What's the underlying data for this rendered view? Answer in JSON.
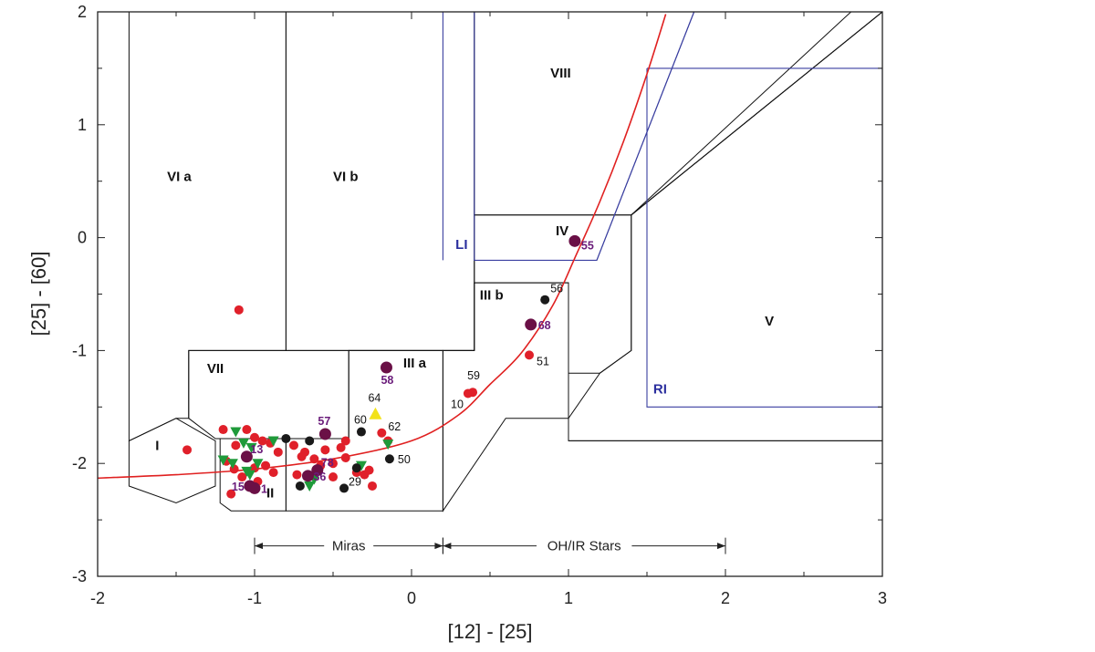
{
  "chart_data": {
    "type": "scatter",
    "title": "",
    "xlabel": "[12] - [25]",
    "ylabel": "[25] - [60]",
    "xlim": [
      -2,
      3
    ],
    "ylim": [
      -3,
      2
    ],
    "x_ticks": [
      "-2",
      "-1",
      "0",
      "1",
      "2",
      "3"
    ],
    "y_ticks": [
      "-3",
      "-2",
      "-1",
      "0",
      "1",
      "2"
    ],
    "grid": false,
    "colors": {
      "region_line": "#111111",
      "blue_line": "#3a3fa0",
      "curve": "#e02020",
      "red_point": "#e0202a",
      "black_point": "#1a1a1a",
      "purple_point": "#6a1046",
      "green_triangle": "#1f9a3a",
      "yellow_triangle": "#f2e21a"
    },
    "regions": [
      {
        "label": "I",
        "x": -1.62,
        "y": -1.88,
        "polygon": [
          [
            -1.8,
            -2.2
          ],
          [
            -1.5,
            -2.35
          ],
          [
            -1.25,
            -2.2
          ],
          [
            -1.25,
            -1.8
          ],
          [
            -1.5,
            -1.6
          ],
          [
            -1.8,
            -1.8
          ]
        ]
      },
      {
        "label": "II",
        "x": -0.9,
        "y": -2.3,
        "polygon": [
          [
            -1.22,
            -2.35
          ],
          [
            -1.15,
            -2.42
          ],
          [
            -0.8,
            -2.42
          ],
          [
            -0.8,
            -1.78
          ],
          [
            -1.22,
            -1.78
          ]
        ]
      },
      {
        "label": "VII",
        "x": -1.25,
        "y": -1.2,
        "polygon": [
          [
            -1.25,
            -1.78
          ],
          [
            -1.42,
            -1.6
          ],
          [
            -1.42,
            -1.0
          ],
          [
            -0.4,
            -1.0
          ],
          [
            -0.4,
            -1.78
          ]
        ]
      },
      {
        "label": "VI a",
        "x": -1.48,
        "y": 0.5,
        "polygon": [
          [
            -1.8,
            2.0
          ],
          [
            -1.8,
            -1.8
          ],
          [
            -1.5,
            -1.6
          ],
          [
            -1.42,
            -1.6
          ],
          [
            -1.42,
            -1.0
          ],
          [
            -0.8,
            -1.0
          ],
          [
            -0.8,
            2.0
          ]
        ]
      },
      {
        "label": "VI b",
        "x": -0.42,
        "y": 0.5,
        "polygon": [
          [
            -0.8,
            -1.0
          ],
          [
            -0.8,
            2.0
          ],
          [
            0.4,
            2.0
          ],
          [
            0.4,
            -1.0
          ]
        ]
      },
      {
        "label": "III a",
        "x": 0.02,
        "y": -1.15,
        "polygon": [
          [
            -0.4,
            -1.0
          ],
          [
            -0.4,
            -1.78
          ],
          [
            -0.8,
            -1.78
          ],
          [
            -0.8,
            -2.42
          ],
          [
            0.2,
            -2.42
          ],
          [
            0.2,
            -1.0
          ]
        ]
      },
      {
        "label": "III b",
        "x": 0.51,
        "y": -0.55,
        "polygon": [
          [
            0.2,
            -2.42
          ],
          [
            0.2,
            -1.0
          ],
          [
            0.4,
            -1.0
          ],
          [
            0.4,
            -0.4
          ],
          [
            1.0,
            -0.4
          ],
          [
            1.0,
            -1.6
          ],
          [
            0.6,
            -1.6
          ]
        ]
      },
      {
        "label": "IV",
        "x": 0.96,
        "y": 0.02,
        "polygon": [
          [
            0.4,
            -0.4
          ],
          [
            0.4,
            0.2
          ],
          [
            1.4,
            0.2
          ],
          [
            1.4,
            -1.0
          ],
          [
            1.2,
            -1.2
          ],
          [
            1.0,
            -1.2
          ],
          [
            1.0,
            -0.4
          ]
        ]
      },
      {
        "label": "VIII",
        "x": 0.95,
        "y": 1.42,
        "polygon": [
          [
            0.4,
            0.2
          ],
          [
            0.4,
            2.0
          ],
          [
            3.0,
            2.0
          ],
          [
            1.4,
            0.2
          ]
        ]
      },
      {
        "label": "V",
        "x": 2.28,
        "y": -0.78,
        "polygon": [
          [
            1.4,
            0.2
          ],
          [
            1.4,
            -1.0
          ],
          [
            1.2,
            -1.2
          ],
          [
            1.0,
            -1.6
          ],
          [
            1.0,
            -1.8
          ],
          [
            3.0,
            -1.8
          ],
          [
            3.0,
            2.0
          ]
        ]
      }
    ],
    "blue_regions": [
      {
        "label": "LI",
        "x": 0.28,
        "y": -0.1,
        "polygon": [
          [
            0.2,
            -0.2
          ],
          [
            0.2,
            2.0
          ],
          [
            0.4,
            2.0
          ],
          [
            0.4,
            -0.2
          ],
          [
            1.18,
            -0.2
          ],
          [
            1.8,
            2.0
          ]
        ]
      },
      {
        "label": "RI",
        "x": 1.54,
        "y": -1.38,
        "polygon": [
          [
            1.5,
            1.5
          ],
          [
            3.0,
            1.5
          ],
          [
            3.0,
            -1.5
          ],
          [
            1.5,
            -1.5
          ]
        ]
      }
    ],
    "extra_lines": [
      [
        [
          -0.4,
          -1.0
        ],
        [
          0.4,
          -1.0
        ]
      ],
      [
        [
          0.4,
          -1.0
        ],
        [
          0.4,
          -0.4
        ]
      ],
      [
        [
          1.0,
          -1.8
        ],
        [
          3.0,
          -1.8
        ]
      ],
      [
        [
          1.4,
          0.2
        ],
        [
          3.0,
          2.0
        ]
      ],
      [
        [
          1.4,
          0.2
        ],
        [
          2.8,
          2.0
        ]
      ]
    ],
    "curve": {
      "name": "",
      "points": [
        [
          -2.0,
          -2.13
        ],
        [
          -1.5,
          -2.1
        ],
        [
          -1.0,
          -2.05
        ],
        [
          -0.5,
          -1.96
        ],
        [
          0.0,
          -1.8
        ],
        [
          0.3,
          -1.57
        ],
        [
          0.5,
          -1.3
        ],
        [
          0.7,
          -1.02
        ],
        [
          0.9,
          -0.6
        ],
        [
          1.05,
          -0.15
        ],
        [
          1.2,
          0.32
        ],
        [
          1.35,
          0.85
        ],
        [
          1.5,
          1.45
        ],
        [
          1.62,
          1.98
        ]
      ]
    },
    "black_points": [
      {
        "x": -0.8,
        "y": -1.78,
        "label": ""
      },
      {
        "x": -0.65,
        "y": -1.8,
        "label": ""
      },
      {
        "x": -0.32,
        "y": -1.72,
        "label": "60"
      },
      {
        "x": -0.14,
        "y": -1.96,
        "label": "50"
      },
      {
        "x": -0.43,
        "y": -2.22,
        "label": "29"
      },
      {
        "x": -0.71,
        "y": -2.2,
        "label": ""
      },
      {
        "x": -0.35,
        "y": -2.04,
        "label": ""
      },
      {
        "x": 0.85,
        "y": -0.55,
        "label": "56"
      }
    ],
    "purple_points": [
      {
        "x": -0.55,
        "y": -1.74,
        "label": "57"
      },
      {
        "x": -0.6,
        "y": -2.06,
        "label": "78"
      },
      {
        "x": -0.66,
        "y": -2.11,
        "label": "36"
      },
      {
        "x": -1.0,
        "y": -2.22,
        "label": "1"
      },
      {
        "x": -1.05,
        "y": -1.94,
        "label": "13"
      },
      {
        "x": -1.03,
        "y": -2.2,
        "label": "15"
      },
      {
        "x": -0.16,
        "y": -1.15,
        "label": "58"
      },
      {
        "x": 0.76,
        "y": -0.77,
        "label": "68"
      },
      {
        "x": 1.04,
        "y": -0.03,
        "label": "55"
      }
    ],
    "red_points": [
      {
        "x": -1.1,
        "y": -0.64,
        "label": ""
      },
      {
        "x": -1.43,
        "y": -1.88,
        "label": ""
      },
      {
        "x": -1.2,
        "y": -1.7,
        "label": ""
      },
      {
        "x": -1.12,
        "y": -1.84,
        "label": ""
      },
      {
        "x": -1.05,
        "y": -1.7,
        "label": ""
      },
      {
        "x": -1.0,
        "y": -1.77,
        "label": ""
      },
      {
        "x": -0.95,
        "y": -1.8,
        "label": ""
      },
      {
        "x": -0.9,
        "y": -1.82,
        "label": ""
      },
      {
        "x": -0.85,
        "y": -1.9,
        "label": ""
      },
      {
        "x": -1.18,
        "y": -1.98,
        "label": ""
      },
      {
        "x": -1.13,
        "y": -2.05,
        "label": ""
      },
      {
        "x": -1.08,
        "y": -2.12,
        "label": ""
      },
      {
        "x": -0.98,
        "y": -2.16,
        "label": ""
      },
      {
        "x": -0.93,
        "y": -2.02,
        "label": ""
      },
      {
        "x": -0.88,
        "y": -2.08,
        "label": ""
      },
      {
        "x": -1.15,
        "y": -2.27,
        "label": ""
      },
      {
        "x": -1.0,
        "y": -2.04,
        "label": ""
      },
      {
        "x": -0.75,
        "y": -1.84,
        "label": ""
      },
      {
        "x": -0.68,
        "y": -1.9,
        "label": ""
      },
      {
        "x": -0.62,
        "y": -1.96,
        "label": ""
      },
      {
        "x": -0.55,
        "y": -1.88,
        "label": ""
      },
      {
        "x": -0.5,
        "y": -2.0,
        "label": ""
      },
      {
        "x": -0.45,
        "y": -1.86,
        "label": ""
      },
      {
        "x": -0.58,
        "y": -2.02,
        "label": ""
      },
      {
        "x": -0.73,
        "y": -2.1,
        "label": ""
      },
      {
        "x": -0.7,
        "y": -1.94,
        "label": ""
      },
      {
        "x": -0.42,
        "y": -1.95,
        "label": ""
      },
      {
        "x": -0.5,
        "y": -2.12,
        "label": ""
      },
      {
        "x": -0.42,
        "y": -1.8,
        "label": ""
      },
      {
        "x": -0.35,
        "y": -2.08,
        "label": ""
      },
      {
        "x": -0.3,
        "y": -2.1,
        "label": ""
      },
      {
        "x": -0.27,
        "y": -2.06,
        "label": ""
      },
      {
        "x": -0.25,
        "y": -2.2,
        "label": ""
      },
      {
        "x": -0.19,
        "y": -1.73,
        "label": "62"
      },
      {
        "x": -0.15,
        "y": -1.8,
        "label": ""
      },
      {
        "x": 0.36,
        "y": -1.38,
        "label": "10"
      },
      {
        "x": 0.39,
        "y": -1.37,
        "label": "59"
      },
      {
        "x": 0.75,
        "y": -1.04,
        "label": "51"
      }
    ],
    "green_triangles": [
      {
        "x": -1.12,
        "y": -1.72
      },
      {
        "x": -1.07,
        "y": -1.82
      },
      {
        "x": -1.02,
        "y": -1.86
      },
      {
        "x": -0.88,
        "y": -1.8
      },
      {
        "x": -1.2,
        "y": -1.97
      },
      {
        "x": -1.14,
        "y": -2.0
      },
      {
        "x": -1.05,
        "y": -2.07
      },
      {
        "x": -0.98,
        "y": -2.0
      },
      {
        "x": -1.03,
        "y": -2.1
      },
      {
        "x": -0.65,
        "y": -2.2
      },
      {
        "x": -0.62,
        "y": -2.14
      },
      {
        "x": -0.32,
        "y": -2.02
      },
      {
        "x": -0.15,
        "y": -1.83
      }
    ],
    "yellow_triangles": [
      {
        "x": -0.23,
        "y": -1.56,
        "label": "64"
      }
    ],
    "range_markers": [
      {
        "label": "Miras",
        "x_start": -1.0,
        "x_end": 0.2,
        "y": -2.73
      },
      {
        "label": "OH/IR Stars",
        "x_start": 0.2,
        "x_end": 2.0,
        "y": -2.73
      }
    ]
  }
}
